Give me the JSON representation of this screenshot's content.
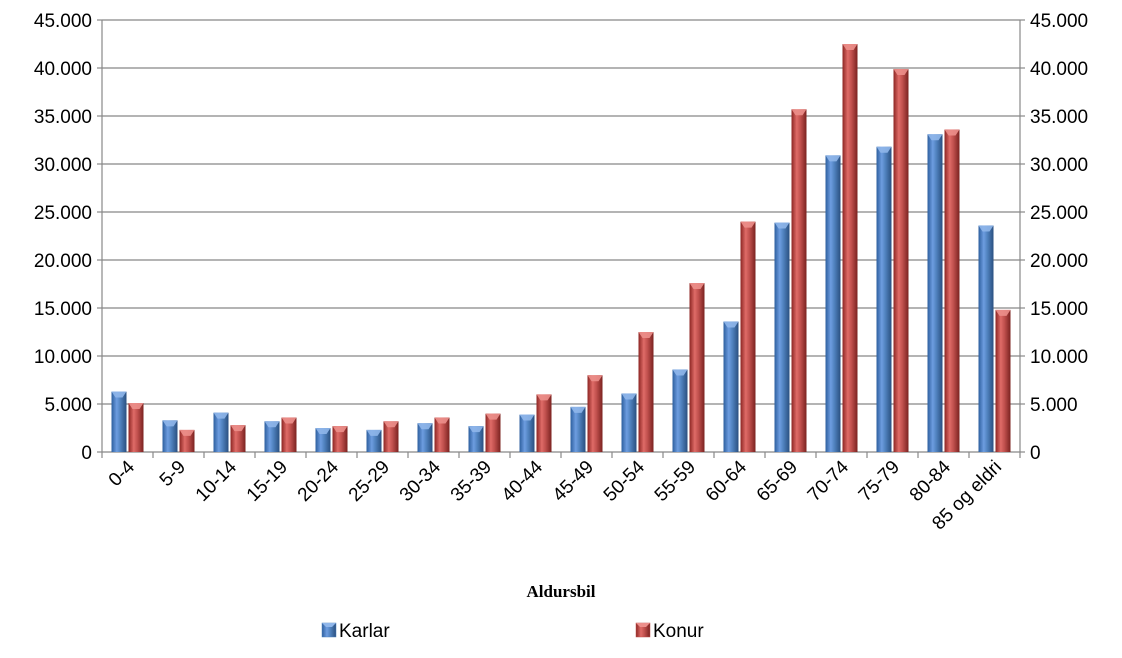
{
  "chart_data": {
    "type": "bar",
    "xlabel": "Aldursbil",
    "ylabel": "",
    "ylim": [
      0,
      45000
    ],
    "ytick_labels": [
      "0",
      "5.000",
      "10.000",
      "15.000",
      "20.000",
      "25.000",
      "30.000",
      "35.000",
      "40.000",
      "45.000"
    ],
    "secondary_y_axis": true,
    "grid": true,
    "legend_position": "bottom",
    "categories": [
      "0-4",
      "5-9",
      "10-14",
      "15-19",
      "20-24",
      "25-29",
      "30-34",
      "35-39",
      "40-44",
      "45-49",
      "50-54",
      "55-59",
      "60-64",
      "65-69",
      "70-74",
      "75-79",
      "80-84",
      "85 og eldri"
    ],
    "series": [
      {
        "name": "Karlar",
        "color": "#4f81bd",
        "values": [
          6300,
          3300,
          4100,
          3200,
          2500,
          2300,
          3000,
          2700,
          3900,
          4700,
          6100,
          8600,
          13600,
          23900,
          30900,
          31800,
          33100,
          23600
        ]
      },
      {
        "name": "Konur",
        "color": "#c0504d",
        "values": [
          5100,
          2300,
          2800,
          3600,
          2700,
          3200,
          3600,
          4000,
          6000,
          8000,
          12500,
          17600,
          24000,
          35700,
          42500,
          39900,
          33600,
          14800
        ]
      }
    ]
  }
}
